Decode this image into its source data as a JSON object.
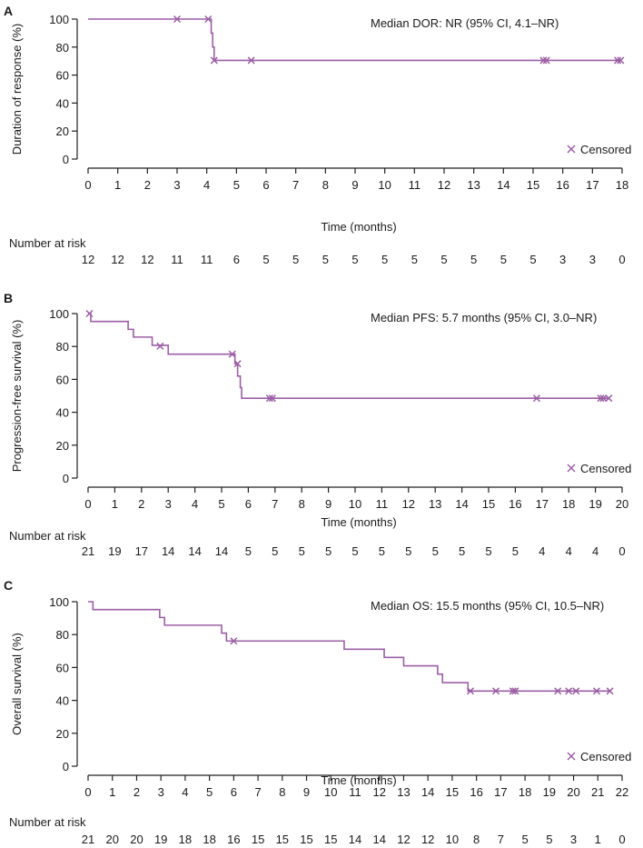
{
  "theme": {
    "curve_color": "#9b5fa5",
    "axis_color": "#222222"
  },
  "risk_label": "Number at risk",
  "chart_data": [
    {
      "panel": "A",
      "type": "line",
      "subtype": "kaplan-meier",
      "ylabel": "Duration of response (%)",
      "xlabel": "Time (months)",
      "xlim": [
        0,
        18
      ],
      "ylim": [
        0,
        100
      ],
      "xticks": [
        0,
        1,
        2,
        3,
        4,
        5,
        6,
        7,
        8,
        9,
        10,
        11,
        12,
        13,
        14,
        15,
        16,
        17,
        18
      ],
      "yticks": [
        0,
        20,
        40,
        60,
        80,
        100
      ],
      "annotation": "Median DOR: NR (95% CI, 4.1–NR)",
      "legend_label": "Censored",
      "steps": [
        [
          0,
          100
        ],
        [
          4.05,
          100
        ],
        [
          4.15,
          90
        ],
        [
          4.2,
          80
        ],
        [
          4.25,
          70.5
        ],
        [
          17.95,
          70.5
        ]
      ],
      "censored": [
        [
          3,
          100
        ],
        [
          4.05,
          100
        ],
        [
          4.25,
          70.5
        ],
        [
          5.5,
          70.5
        ],
        [
          15.35,
          70.5
        ],
        [
          15.45,
          70.5
        ],
        [
          17.85,
          70.5
        ],
        [
          17.95,
          70.5
        ]
      ],
      "at_risk": [
        12,
        12,
        12,
        11,
        11,
        6,
        5,
        5,
        5,
        5,
        5,
        5,
        5,
        5,
        5,
        5,
        3,
        3,
        0
      ]
    },
    {
      "panel": "B",
      "type": "line",
      "subtype": "kaplan-meier",
      "ylabel": "Progression-free survival (%)",
      "xlabel": "Time (months)",
      "xlim": [
        0,
        20
      ],
      "ylim": [
        0,
        100
      ],
      "xticks": [
        0,
        1,
        2,
        3,
        4,
        5,
        6,
        7,
        8,
        9,
        10,
        11,
        12,
        13,
        14,
        15,
        16,
        17,
        18,
        19,
        20
      ],
      "yticks": [
        0,
        20,
        40,
        60,
        80,
        100
      ],
      "annotation": "Median PFS: 5.7 months (95% CI, 3.0–NR)",
      "legend_label": "Censored",
      "steps": [
        [
          0,
          100
        ],
        [
          0.1,
          95.2
        ],
        [
          1.5,
          90.4
        ],
        [
          1.7,
          85.7
        ],
        [
          2.4,
          80.7
        ],
        [
          3,
          75.3
        ],
        [
          5.5,
          69.5
        ],
        [
          5.6,
          62
        ],
        [
          5.7,
          55
        ],
        [
          5.75,
          48.5
        ],
        [
          19.5,
          48.5
        ]
      ],
      "censored": [
        [
          0.05,
          100
        ],
        [
          2.7,
          80.2
        ],
        [
          5.4,
          75.3
        ],
        [
          5.6,
          69.5
        ],
        [
          6.8,
          48.5
        ],
        [
          6.9,
          48.5
        ],
        [
          16.8,
          48.5
        ],
        [
          19.2,
          48.5
        ],
        [
          19.3,
          48.5
        ],
        [
          19.5,
          48.5
        ]
      ],
      "at_risk": [
        21,
        19,
        17,
        14,
        14,
        14,
        5,
        5,
        5,
        5,
        5,
        5,
        5,
        5,
        5,
        5,
        5,
        4,
        4,
        4,
        0
      ]
    },
    {
      "panel": "C",
      "type": "line",
      "subtype": "kaplan-meier",
      "ylabel": "Overall survival (%)",
      "xlabel": "Time (months)",
      "xlim": [
        0,
        22
      ],
      "ylim": [
        0,
        100
      ],
      "xticks": [
        0,
        1,
        2,
        3,
        4,
        5,
        6,
        7,
        8,
        9,
        10,
        11,
        12,
        13,
        14,
        15,
        16,
        17,
        18,
        19,
        20,
        21,
        22
      ],
      "yticks": [
        0,
        20,
        40,
        60,
        80,
        100
      ],
      "annotation": "Median OS: 15.5 months (95% CI, 10.5–NR)",
      "legend_label": "Censored",
      "steps": [
        [
          0,
          100
        ],
        [
          0.2,
          95.2
        ],
        [
          2.9,
          95.2
        ],
        [
          2.95,
          90.4
        ],
        [
          3.15,
          85.7
        ],
        [
          5.45,
          85.7
        ],
        [
          5.5,
          80.9
        ],
        [
          5.7,
          76.1
        ],
        [
          10.5,
          76.1
        ],
        [
          10.55,
          71.1
        ],
        [
          12.15,
          71.1
        ],
        [
          12.2,
          66.1
        ],
        [
          12.95,
          66.1
        ],
        [
          13,
          61
        ],
        [
          14.35,
          61
        ],
        [
          14.4,
          56
        ],
        [
          14.6,
          50.8
        ],
        [
          15.55,
          50.8
        ],
        [
          15.65,
          45.7
        ],
        [
          21.5,
          45.7
        ]
      ],
      "censored": [
        [
          6,
          76.1
        ],
        [
          15.75,
          45.7
        ],
        [
          16.8,
          45.7
        ],
        [
          17.5,
          45.7
        ],
        [
          17.6,
          45.7
        ],
        [
          19.35,
          45.7
        ],
        [
          19.8,
          45.7
        ],
        [
          20.1,
          45.7
        ],
        [
          20.95,
          45.7
        ],
        [
          21.5,
          45.7
        ]
      ],
      "at_risk": [
        21,
        20,
        20,
        19,
        18,
        18,
        16,
        15,
        15,
        15,
        15,
        14,
        14,
        12,
        12,
        10,
        8,
        7,
        5,
        5,
        3,
        1,
        0
      ]
    }
  ]
}
